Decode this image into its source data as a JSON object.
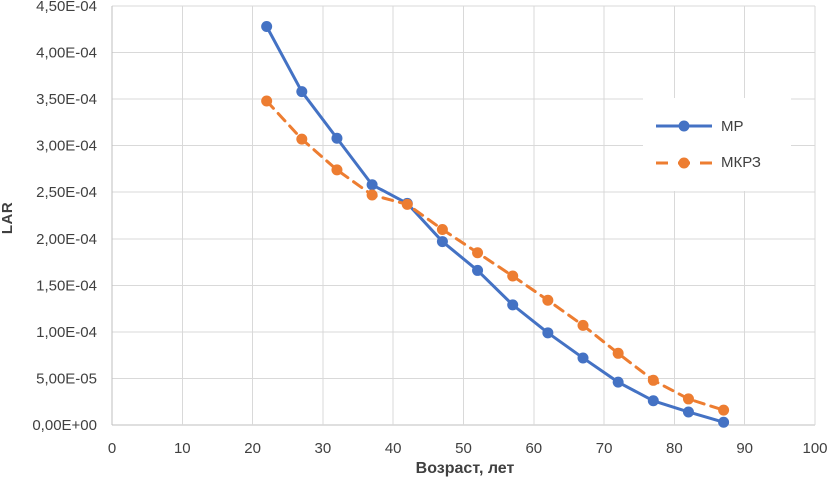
{
  "chart_data": {
    "type": "line",
    "title": "",
    "xlabel": "Возраст, лет",
    "ylabel": "LAR",
    "x": [
      22,
      27,
      32,
      37,
      42,
      47,
      52,
      57,
      62,
      67,
      72,
      77,
      82,
      87
    ],
    "series": [
      {
        "name": "МР",
        "color": "#4472C4",
        "line_style": "solid",
        "marker": "circle",
        "values": [
          0.000428,
          0.000358,
          0.000308,
          0.000258,
          0.000238,
          0.000197,
          0.000166,
          0.000129,
          9.9e-05,
          7.2e-05,
          4.6e-05,
          2.6e-05,
          1.4e-05,
          3e-06
        ]
      },
      {
        "name": "МКРЗ",
        "color": "#ED7D31",
        "line_style": "dashed",
        "marker": "circle",
        "values": [
          0.000348,
          0.000307,
          0.000274,
          0.000247,
          0.000237,
          0.00021,
          0.000185,
          0.00016,
          0.000134,
          0.000107,
          7.7e-05,
          4.8e-05,
          2.8e-05,
          1.6e-05
        ]
      }
    ],
    "xlim": [
      0,
      100
    ],
    "ylim": [
      0,
      0.00045
    ],
    "x_ticks": [
      0,
      10,
      20,
      30,
      40,
      50,
      60,
      70,
      80,
      90,
      100
    ],
    "x_tick_labels": [
      "0",
      "10",
      "20",
      "30",
      "40",
      "50",
      "60",
      "70",
      "80",
      "90",
      "100"
    ],
    "y_ticks": [
      0,
      5e-05,
      0.0001,
      0.00015,
      0.0002,
      0.00025,
      0.0003,
      0.00035,
      0.0004,
      0.00045
    ],
    "y_tick_labels": [
      "0,00E+00",
      "5,00E-05",
      "1,00E-04",
      "1,50E-04",
      "2,00E-04",
      "2,50E-04",
      "3,00E-04",
      "3,50E-04",
      "4,00E-04",
      "4,50E-04"
    ],
    "grid": true,
    "legend_position": "inside-top-right",
    "colors": {
      "gridline": "#D9D9D9",
      "axis_line": "#BFBFBF",
      "text": "#404040",
      "background": "#FFFFFF"
    }
  }
}
